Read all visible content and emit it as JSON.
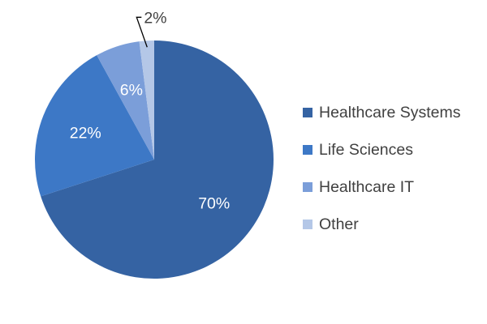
{
  "chart_data": {
    "type": "pie",
    "categories": [
      "Healthcare Systems",
      "Life Sciences",
      "Healthcare IT",
      "Other"
    ],
    "values": [
      70,
      22,
      6,
      2
    ],
    "data_labels": [
      "70%",
      "22%",
      "6%",
      "2%"
    ],
    "colors": [
      "#3563A3",
      "#3D78C6",
      "#7B9ED9",
      "#B4C7E7"
    ],
    "label_color": "#FFFFFF",
    "callout_label_color": "#404040",
    "legend_placement": "right",
    "title": "",
    "start_angle": "12 o'clock, clockwise"
  }
}
